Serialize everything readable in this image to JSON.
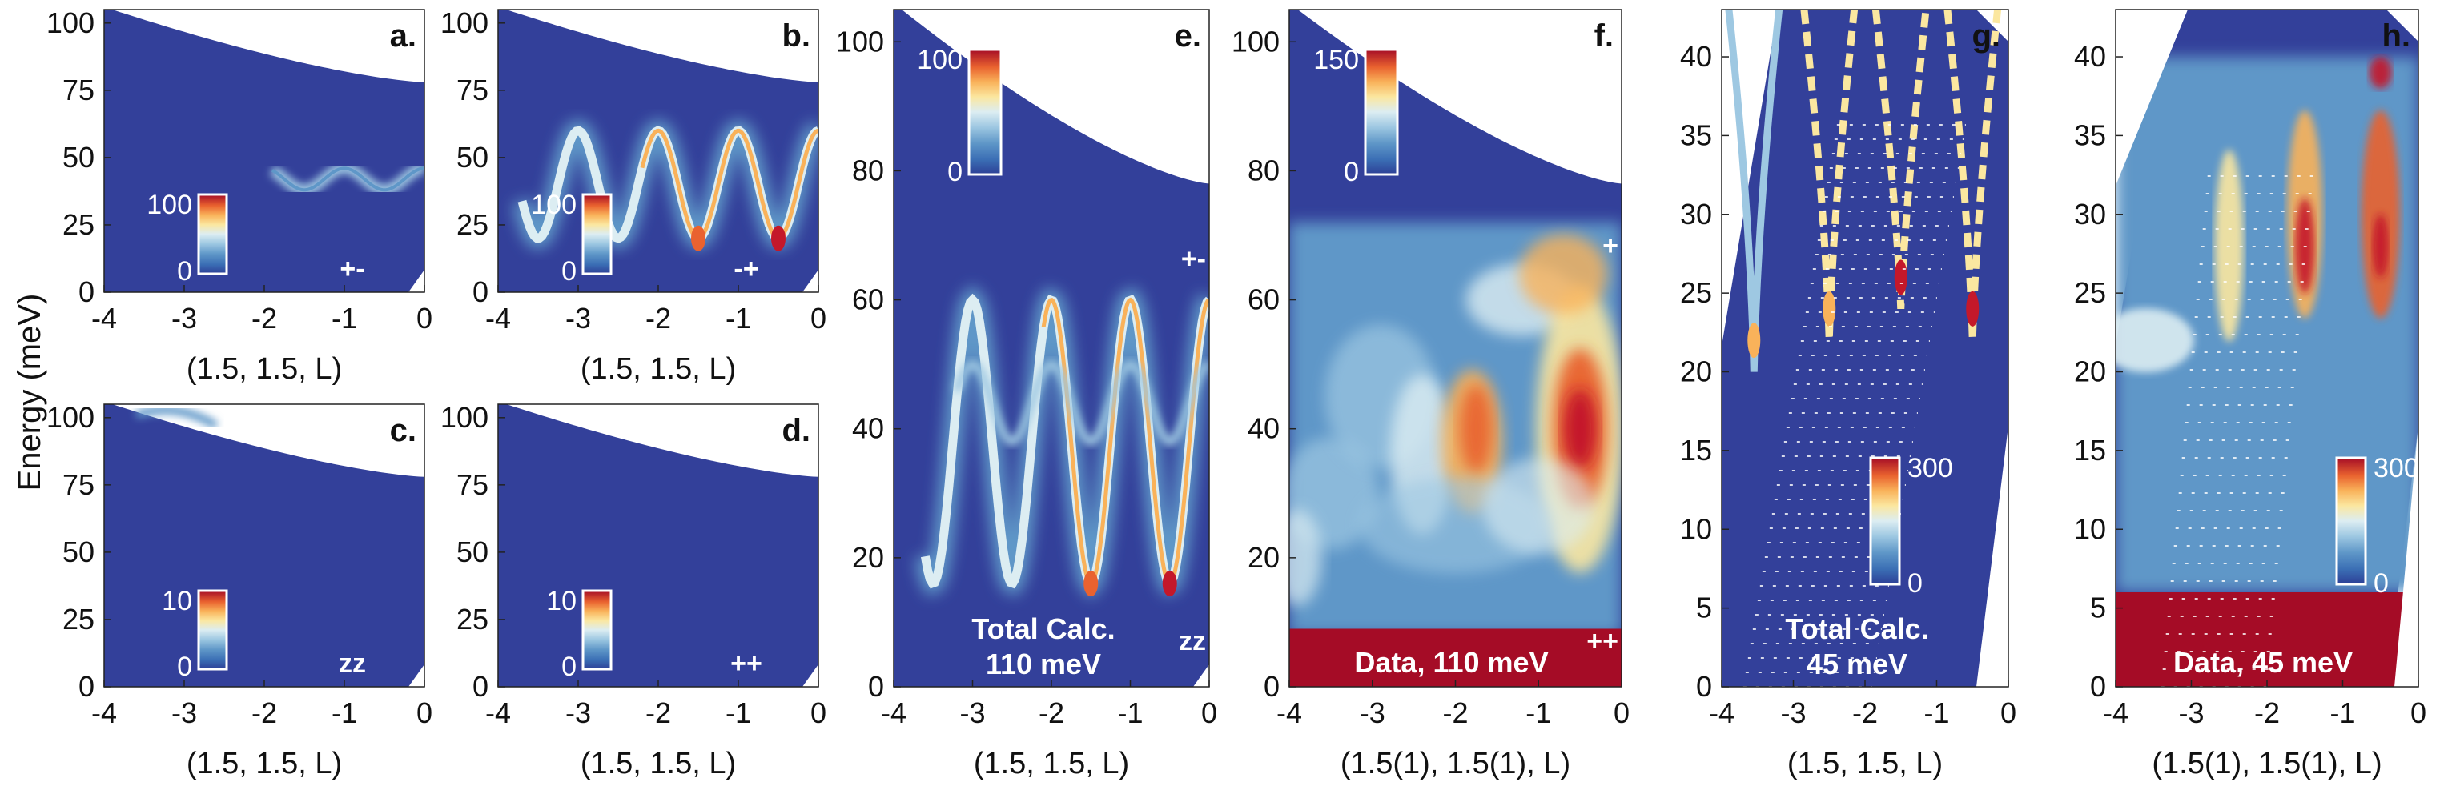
{
  "figure": {
    "y_axis_label": "Energy (meV)"
  },
  "colors": {
    "background_blue": "#33409a",
    "colormap": [
      "#2d3f96",
      "#3b6fb5",
      "#5f97c8",
      "#9ec8e2",
      "#dcedf2",
      "#fbe7a0",
      "#f9b25a",
      "#e9622f",
      "#c4182a",
      "#a50c26"
    ]
  },
  "chart_data": [
    {
      "id": "a",
      "type": "heatmap",
      "panel_label": "a.",
      "xlabel": "(1.5, 1.5, L)",
      "ylabel": "Energy (meV)",
      "xlim": [
        -4,
        0
      ],
      "ylim": [
        0,
        105
      ],
      "xticks": [
        "-4",
        "-3",
        "-2",
        "-1",
        "0"
      ],
      "yticks": [
        "0",
        "25",
        "50",
        "75",
        "100"
      ],
      "colorbar": {
        "min": "0",
        "max": "100"
      },
      "sector_label": "+-",
      "mode": {
        "amp": 0.35,
        "segment": [
          -1.9,
          0
        ],
        "note": "weak single dispersive band near 40-45 meV"
      }
    },
    {
      "id": "b",
      "type": "heatmap",
      "panel_label": "b.",
      "xlabel": "(1.5, 1.5, L)",
      "ylabel": "",
      "xlim": [
        -4,
        0
      ],
      "ylim": [
        0,
        105
      ],
      "xticks": [
        "-4",
        "-3",
        "-2",
        "-1",
        "0"
      ],
      "yticks": [
        "0",
        "25",
        "50",
        "75",
        "100"
      ],
      "colorbar": {
        "min": "0",
        "max": "100"
      },
      "sector_label": "-+",
      "mode": {
        "amp": 1.0,
        "segment": [
          -3.7,
          0
        ],
        "note": "oscillating band between ~20 and ~60 meV"
      }
    },
    {
      "id": "c",
      "type": "heatmap",
      "panel_label": "c.",
      "xlabel": "(1.5, 1.5, L)",
      "ylabel": "",
      "xlim": [
        -4,
        0
      ],
      "ylim": [
        0,
        105
      ],
      "xticks": [
        "-4",
        "-3",
        "-2",
        "-1",
        "0"
      ],
      "yticks": [
        "0",
        "25",
        "50",
        "75",
        "100"
      ],
      "colorbar": {
        "min": "0",
        "max": "10"
      },
      "sector_label": "zz",
      "mode": {
        "amp": 0.4,
        "segment": [
          -3.6,
          -2.6
        ],
        "note": "faint intensity near 100 meV"
      }
    },
    {
      "id": "d",
      "type": "heatmap",
      "panel_label": "d.",
      "xlabel": "(1.5, 1.5, L)",
      "ylabel": "",
      "xlim": [
        -4,
        0
      ],
      "ylim": [
        0,
        105
      ],
      "xticks": [
        "-4",
        "-3",
        "-2",
        "-1",
        "0"
      ],
      "yticks": [
        "0",
        "25",
        "50",
        "75",
        "100"
      ],
      "colorbar": {
        "min": "0",
        "max": "10"
      },
      "sector_label": "++",
      "mode": {
        "amp": 0,
        "segment": [
          0,
          0
        ],
        "note": "no visible intensity"
      }
    },
    {
      "id": "e",
      "type": "heatmap",
      "panel_label": "e.",
      "xlabel": "(1.5, 1.5, L)",
      "ylabel": "",
      "xlim": [
        -4,
        0
      ],
      "ylim": [
        0,
        105
      ],
      "xticks": [
        "-4",
        "-3",
        "-2",
        "-1",
        "0"
      ],
      "yticks": [
        "0",
        "20",
        "40",
        "60",
        "80",
        "100"
      ],
      "colorbar": {
        "min": "0",
        "max": "100"
      },
      "annotation": [
        "Total Calc.",
        "110 meV"
      ],
      "corner_marks": [
        "+-",
        "zz"
      ],
      "mode": {
        "amp": 1.0,
        "segment": [
          -3.6,
          0
        ],
        "note": "oscillating band 15-65 meV"
      }
    },
    {
      "id": "f",
      "type": "heatmap",
      "panel_label": "f.",
      "xlabel": "(1.5(1), 1.5(1), L)",
      "ylabel": "",
      "xlim": [
        -4,
        0
      ],
      "ylim": [
        0,
        105
      ],
      "xticks": [
        "-4",
        "-3",
        "-2",
        "-1",
        "0"
      ],
      "yticks": [
        "0",
        "20",
        "40",
        "60",
        "80",
        "100"
      ],
      "colorbar": {
        "min": "0",
        "max": "150"
      },
      "annotation": [
        "Data, 110 meV"
      ],
      "corner_marks": [
        "+",
        "++"
      ],
      "mode": {
        "amp": 0.9,
        "segment": [
          -4,
          0
        ],
        "note": "measured intensity, strongest near L=-0.5 at 40 meV"
      }
    },
    {
      "id": "g",
      "type": "heatmap",
      "panel_label": "g.",
      "xlabel": "(1.5, 1.5, L)",
      "ylabel": "",
      "xlim": [
        -4,
        0
      ],
      "ylim": [
        0,
        43
      ],
      "xticks": [
        "-4",
        "-3",
        "-2",
        "-1",
        "0"
      ],
      "yticks": [
        "0",
        "5",
        "10",
        "15",
        "20",
        "25",
        "30",
        "35",
        "40"
      ],
      "colorbar": {
        "min": "0",
        "max": "300"
      },
      "annotation": [
        "Total Calc.",
        "45 meV"
      ],
      "mode": {
        "amp": 1.0,
        "segment": [
          -4,
          0
        ],
        "note": "V-shaped modes at L=-3.5,-2.5,-1.5,-0.5"
      }
    },
    {
      "id": "h",
      "type": "heatmap",
      "panel_label": "h.",
      "xlabel": "(1.5(1), 1.5(1), L)",
      "ylabel": "",
      "xlim": [
        -4,
        0
      ],
      "ylim": [
        0,
        43
      ],
      "xticks": [
        "-4",
        "-3",
        "-2",
        "-1",
        "0"
      ],
      "yticks": [
        "0",
        "5",
        "10",
        "15",
        "20",
        "25",
        "30",
        "35",
        "40"
      ],
      "colorbar": {
        "min": "0",
        "max": "300"
      },
      "annotation": [
        "Data, 45 meV"
      ],
      "mode": {
        "amp": 0.9,
        "segment": [
          -4,
          0
        ],
        "note": "measured intensity, columns at L=-2.5,-1.5,-0.5"
      }
    }
  ]
}
